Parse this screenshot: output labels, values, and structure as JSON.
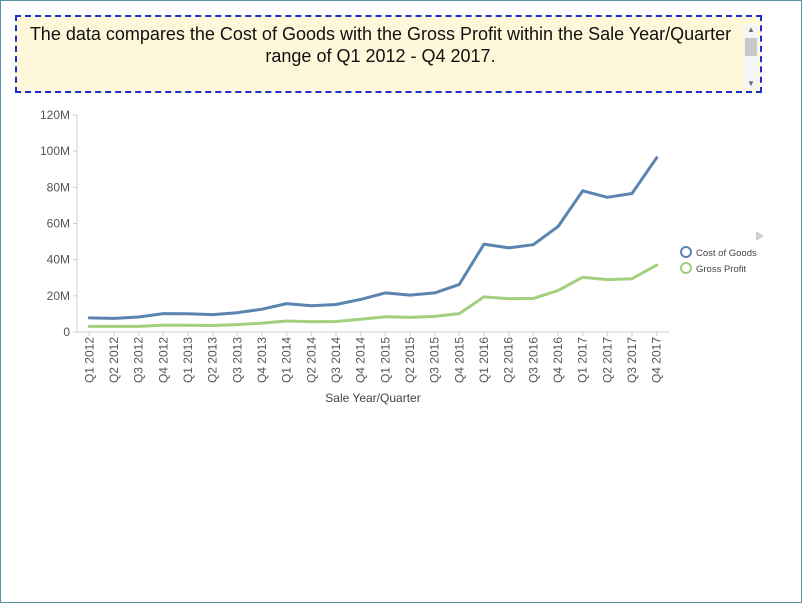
{
  "summary": {
    "text": "The data compares the Cost of Goods with the Gross Profit within the Sale Year/Quarter range of Q1 2012 - Q4 2017."
  },
  "colors": {
    "cost_of_goods": "#5b84b1",
    "gross_profit": "#a3d07e",
    "summary_border": "#1a2fd0",
    "summary_bg": "#fff7d9"
  },
  "icons": {
    "legend_arrow": "triangle-right-icon",
    "scroll_up": "triangle-up-icon",
    "scroll_down": "triangle-down-icon"
  },
  "chart_data": {
    "type": "line",
    "title": "",
    "xlabel": "Sale Year/Quarter",
    "ylabel": "",
    "categories": [
      "Q1 2012",
      "Q2 2012",
      "Q3 2012",
      "Q4 2012",
      "Q1 2013",
      "Q2 2013",
      "Q3 2013",
      "Q4 2013",
      "Q1 2014",
      "Q2 2014",
      "Q3 2014",
      "Q4 2014",
      "Q1 2015",
      "Q2 2015",
      "Q3 2015",
      "Q4 2015",
      "Q1 2016",
      "Q2 2016",
      "Q3 2016",
      "Q4 2016",
      "Q1 2017",
      "Q2 2017",
      "Q3 2017",
      "Q4 2017"
    ],
    "ylim": [
      0,
      120000000
    ],
    "yticks": [
      0,
      20000000,
      40000000,
      60000000,
      80000000,
      100000000,
      120000000
    ],
    "ytick_labels": [
      "0",
      "20M",
      "40M",
      "60M",
      "80M",
      "100M",
      "120M"
    ],
    "grid": false,
    "legend_position": "right",
    "series": [
      {
        "name": "Cost of Goods",
        "color": "#5b84b1",
        "values": [
          7.8,
          7.5,
          8.3,
          10.2,
          10.1,
          9.6,
          10.7,
          12.6,
          15.7,
          14.5,
          15.2,
          18.0,
          21.6,
          20.4,
          21.6,
          26.3,
          48.6,
          46.5,
          48.3,
          58.3,
          78.1,
          74.5,
          76.6,
          96.4
        ]
      },
      {
        "name": "Gross Profit",
        "color": "#a3d07e",
        "values": [
          3.1,
          3.1,
          3.1,
          3.8,
          3.7,
          3.6,
          4.1,
          4.9,
          6.1,
          5.7,
          5.8,
          7.0,
          8.4,
          8.1,
          8.6,
          10.2,
          19.4,
          18.4,
          18.6,
          22.9,
          30.3,
          29.0,
          29.5,
          37.0
        ]
      }
    ],
    "value_unit": "M"
  }
}
